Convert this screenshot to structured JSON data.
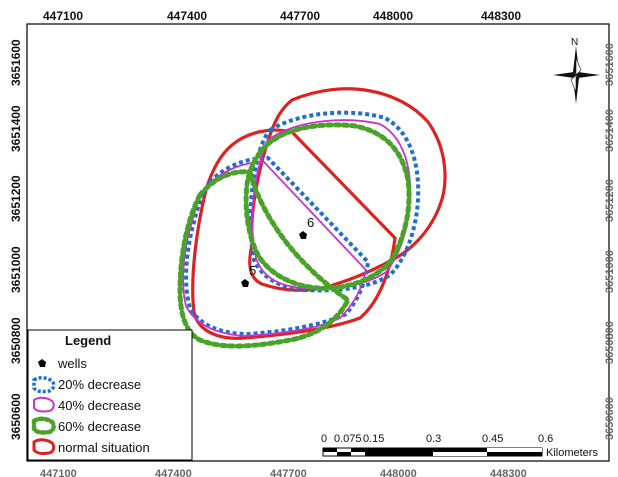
{
  "axes": {
    "x_ticks_top": [
      "447100",
      "447400",
      "447700",
      "448000",
      "448300"
    ],
    "x_ticks_bottom": [
      "447100",
      "447400",
      "447700",
      "448000",
      "448300"
    ],
    "y_ticks_left": [
      "3651600",
      "3651400",
      "3651200",
      "3651000",
      "3650800",
      "3650600"
    ],
    "y_ticks_right": [
      "3651600",
      "3651400",
      "3651200",
      "3651000",
      "3650800",
      "3650600"
    ]
  },
  "north_arrow": {
    "label": "N",
    "icon": "north-arrow-icon"
  },
  "wells": [
    {
      "label": "5",
      "x": 447657,
      "y": 3650930
    },
    {
      "label": "6",
      "x": 447715,
      "y": 3651070
    }
  ],
  "legend": {
    "title": "Legend",
    "items": [
      {
        "label": "wells",
        "icon": "well-point-icon"
      },
      {
        "label": "20% decrease",
        "icon": "blue-dotted-polygon-icon",
        "color": "#1f6fd1"
      },
      {
        "label": "40% decrease",
        "icon": "magenta-polygon-icon",
        "color": "#cc33cc"
      },
      {
        "label": "60% decrease",
        "icon": "green-dotted-polygon-icon",
        "color": "#4aa329"
      },
      {
        "label": "normal situation",
        "icon": "red-polygon-icon",
        "color": "#dd2222"
      }
    ]
  },
  "scale_bar": {
    "ticks": [
      "0",
      "0.075",
      "0.15",
      "0.3",
      "0.45",
      "0.6"
    ],
    "unit": "Kilometers"
  }
}
